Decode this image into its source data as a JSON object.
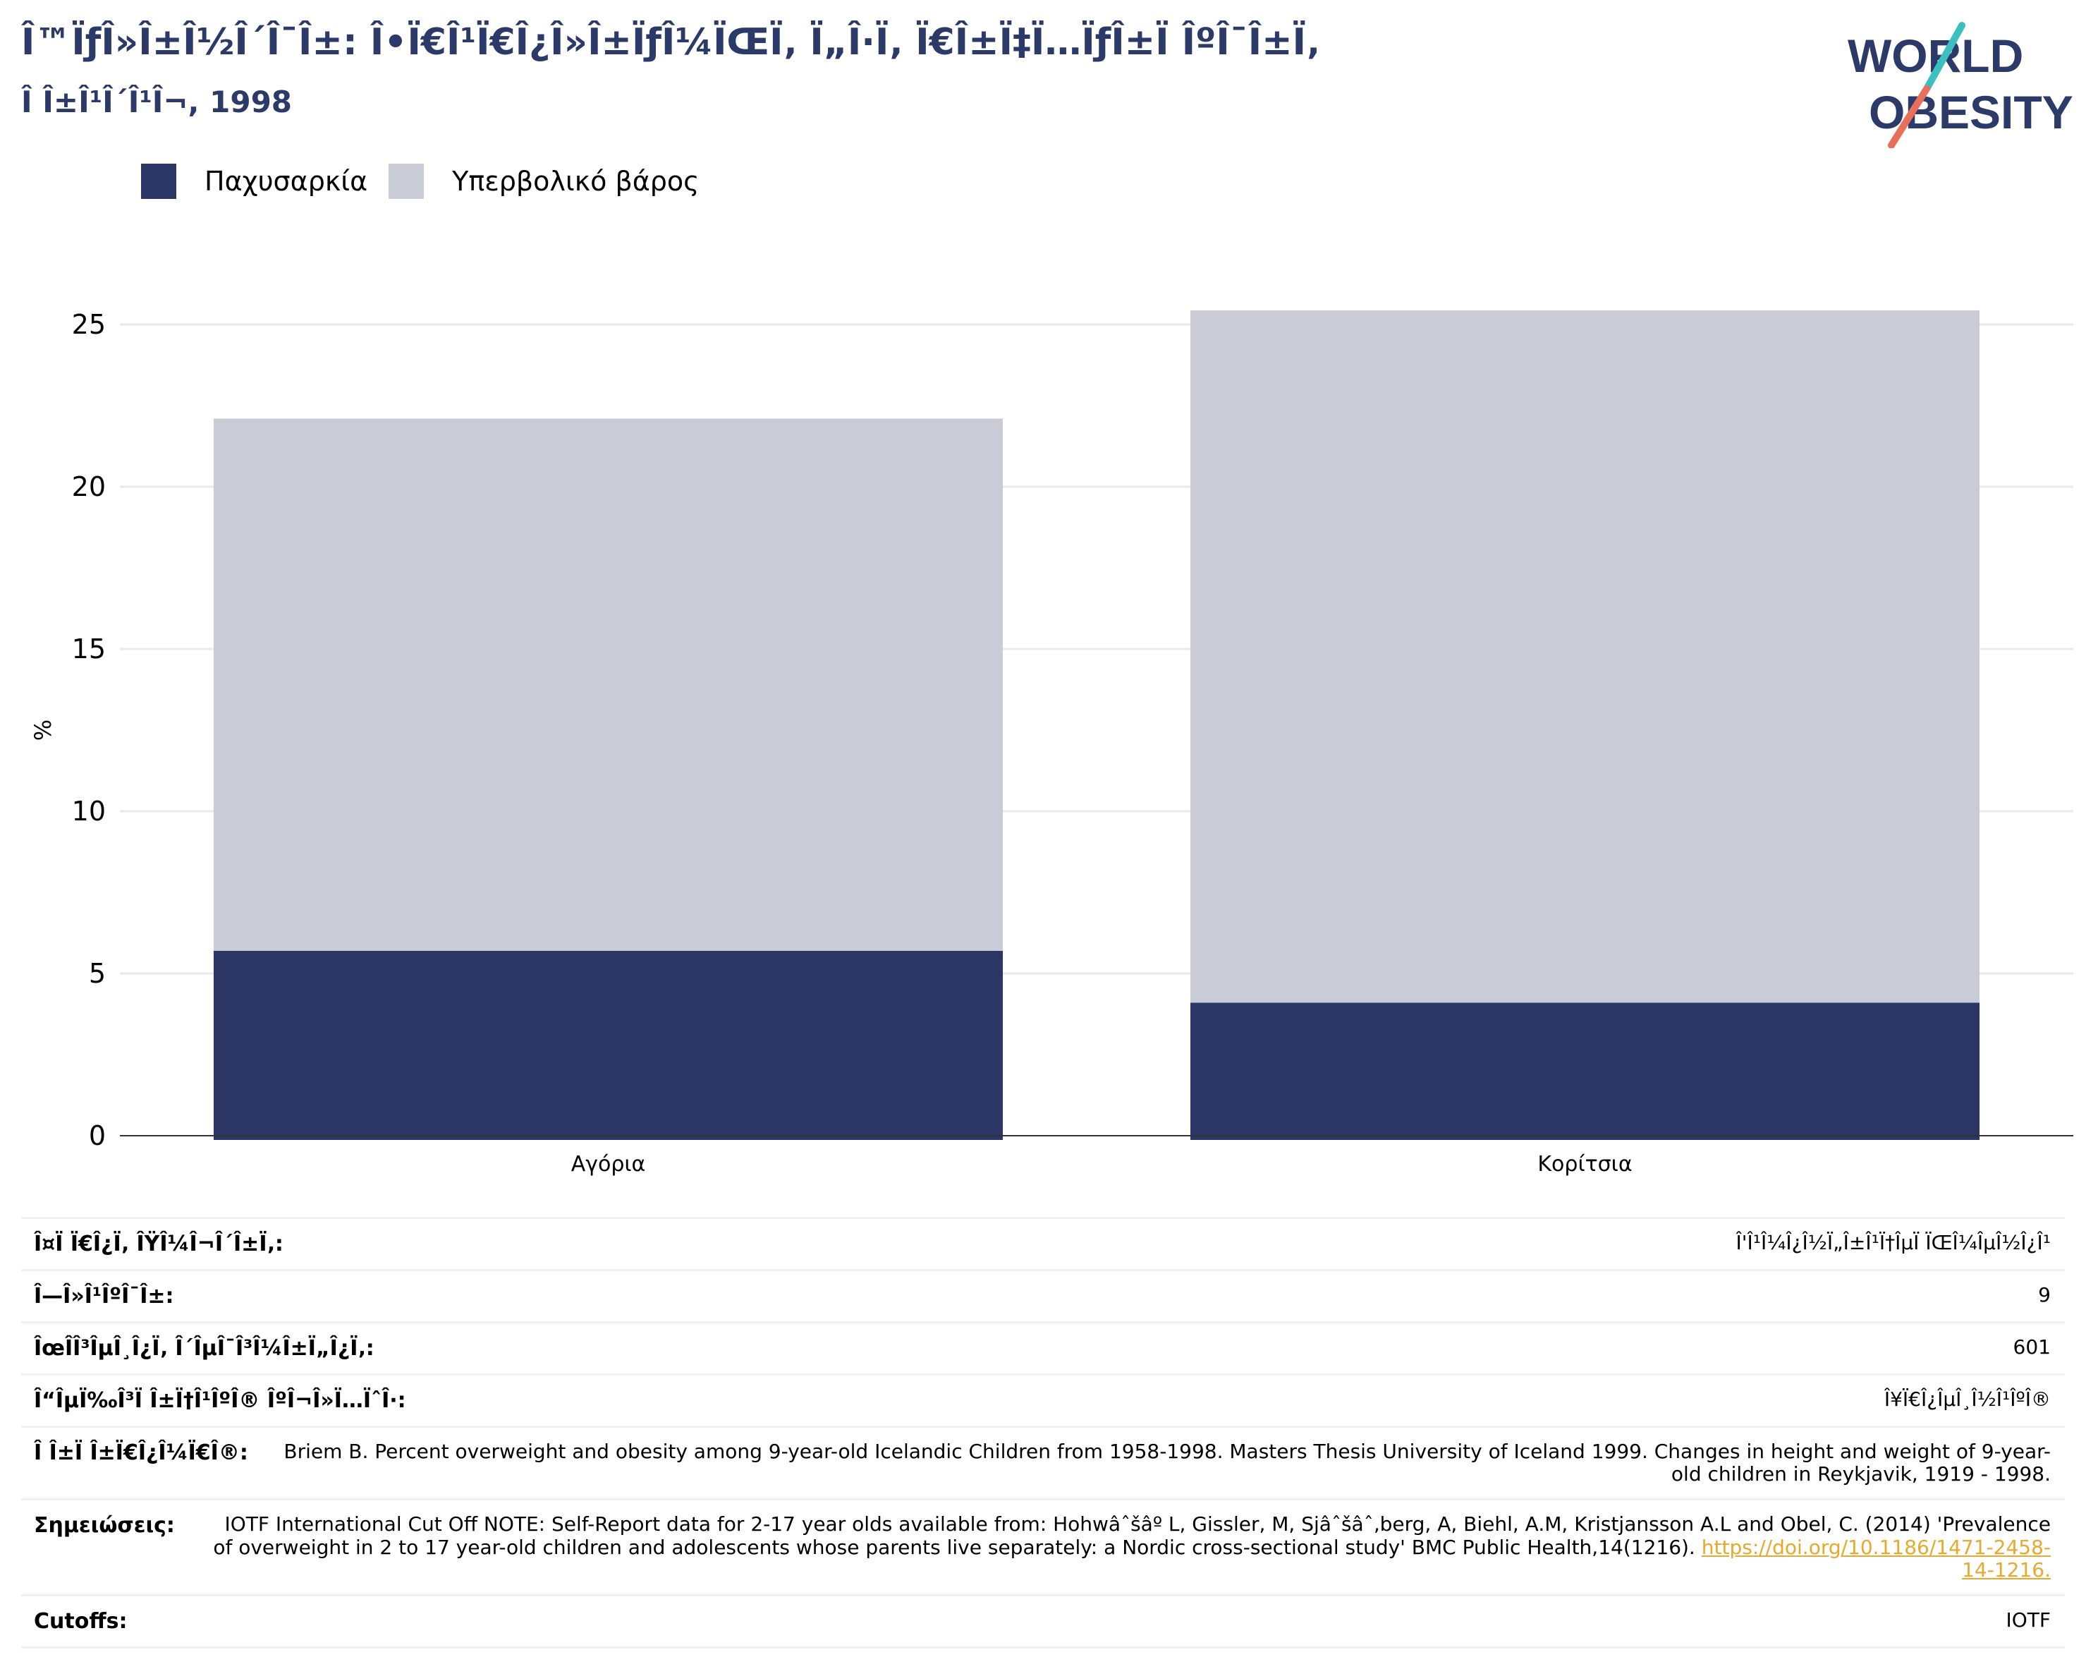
{
  "header": {
    "title": "Î™ÏƒÎ»Î±Î½Î´Î¯Î±: Î•Ï€Î¹Ï€Î¿Î»Î±ÏƒÎ¼ÏŒÏ‚ Ï„Î·Ï‚ Ï€Î±Ï‡Ï…ÏƒÎ±Ï ÎºÎ¯Î±Ï‚",
    "subtitle": "Î Î±Î¹Î´Î¹Î¬, 1998"
  },
  "logo": {
    "line1": "WORLD",
    "line2": "OBESITY",
    "colors": {
      "text": "#2b3a68",
      "slash_top": "#3bbfbf",
      "slash_bottom": "#e8705a"
    }
  },
  "legend": [
    {
      "label": "Παχυσαρκία",
      "color": "#2b3664"
    },
    {
      "label": "Υπερβολικό βάρος",
      "color": "#c9cbd7"
    }
  ],
  "chart_data": {
    "type": "bar",
    "stacked": true,
    "categories": [
      "Αγόρια",
      "Κορίτσια"
    ],
    "series": [
      {
        "name": "Παχυσαρκία",
        "values": [
          5.7,
          4.1
        ],
        "color": "#2b3664"
      },
      {
        "name": "Υπερβολικό βάρος",
        "values": [
          16.4,
          21.5
        ],
        "color": "#c9cbd7"
      }
    ],
    "ylabel": "%",
    "ylim": [
      0,
      25
    ],
    "yticks": [
      0,
      5,
      10,
      15,
      20,
      25
    ],
    "grid": true,
    "legend_position": "top-left"
  },
  "meta": [
    {
      "label": "Î¤Ï Ï€Î¿Ï‚ ÎŸÎ¼Î¬Î´Î±Ï‚:",
      "value": "Î'Î¹Î¼Î¿Î½Ï„Î±Î¹Ï†ÎµÏ ÏŒÎ¼ÎµÎ½Î¿Î¹"
    },
    {
      "label": "Î—Î»Î¹ÎºÎ¯Î±:",
      "value": "9"
    },
    {
      "label": "ÎœÎ­Î³ÎµÎ¸Î¿Ï‚ Î´ÎµÎ¯Î³Î¼Î±Ï„Î¿Ï‚:",
      "value": "601"
    },
    {
      "label": "Î“ÎµÏ‰Î³Ï Î±Ï†Î¹ÎºÎ® ÎºÎ¬Î»Ï…ÏˆÎ·:",
      "value": "Î¥Ï€Î¿ÎµÎ¸Î½Î¹ÎºÎ®"
    },
    {
      "label": "Î Î±Ï Î±Ï€Î¿Î¼Ï€Î®:",
      "value": "Briem B. Percent overweight and obesity among 9-year-old Icelandic Children from 1958-1998. Masters Thesis University of Iceland 1999. Changes in height and weight of 9-year-old children in Reykjavik, 1919 - 1998."
    },
    {
      "label": "Σημειώσεις:",
      "value": "IOTF International Cut Off NOTE: Self-Report data for 2-17 year olds available from: Hohwâˆšâº L, Gissler, M, Sjâˆšâˆ‚berg, A, Biehl, A.M, Kristjansson A.L and Obel, C. (2014) 'Prevalence of overweight in 2 to 17 year-old children and adolescents whose parents live separately: a Nordic cross-sectional study' BMC Public Health,14(1216).",
      "link": "https://doi.org/10.1186/1471-2458-14-1216."
    },
    {
      "label": "Cutoffs:",
      "value": "IOTF"
    }
  ]
}
